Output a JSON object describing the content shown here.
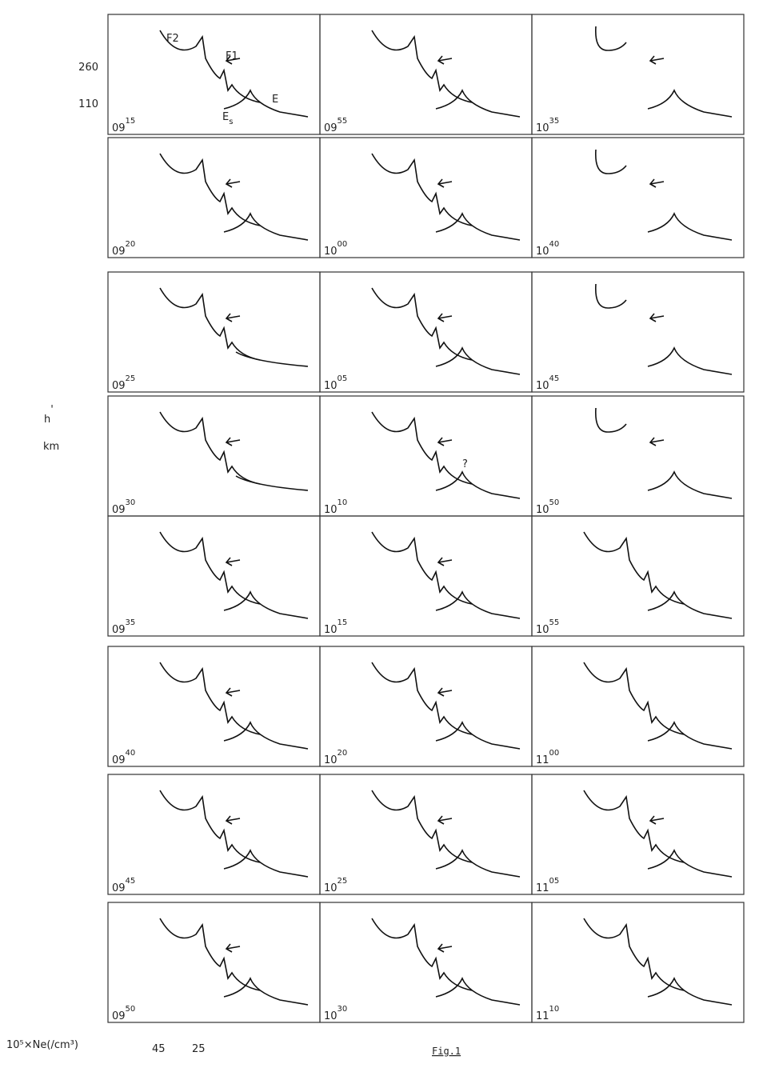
{
  "axis": {
    "y_ticks": [
      "260",
      "110"
    ],
    "y_label": {
      "main": "h",
      "prime": "'",
      "unit": "km"
    },
    "x_label": "10⁵×Ne(/cm³)",
    "x_ticks": [
      "45",
      "25"
    ]
  },
  "labels": {
    "F2": "F2",
    "F1": "F1",
    "E": "E",
    "Es": {
      "base": "E",
      "sub": "s"
    }
  },
  "panels": [
    {
      "hour": "09",
      "minute": "15"
    },
    {
      "hour": "09",
      "minute": "20"
    },
    {
      "hour": "09",
      "minute": "25"
    },
    {
      "hour": "09",
      "minute": "30"
    },
    {
      "hour": "09",
      "minute": "35"
    },
    {
      "hour": "09",
      "minute": "40"
    },
    {
      "hour": "09",
      "minute": "45"
    },
    {
      "hour": "09",
      "minute": "50"
    },
    {
      "hour": "09",
      "minute": "55"
    },
    {
      "hour": "10",
      "minute": "00"
    },
    {
      "hour": "10",
      "minute": "05"
    },
    {
      "hour": "10",
      "minute": "10"
    },
    {
      "hour": "10",
      "minute": "15"
    },
    {
      "hour": "10",
      "minute": "20"
    },
    {
      "hour": "10",
      "minute": "25"
    },
    {
      "hour": "10",
      "minute": "30"
    },
    {
      "hour": "10",
      "minute": "35"
    },
    {
      "hour": "10",
      "minute": "40"
    },
    {
      "hour": "10",
      "minute": "45"
    },
    {
      "hour": "10",
      "minute": "50"
    },
    {
      "hour": "10",
      "minute": "55"
    },
    {
      "hour": "11",
      "minute": "00"
    },
    {
      "hour": "11",
      "minute": "05"
    },
    {
      "hour": "11",
      "minute": "10"
    }
  ],
  "annotation": "?",
  "caption": "Fig.1"
}
